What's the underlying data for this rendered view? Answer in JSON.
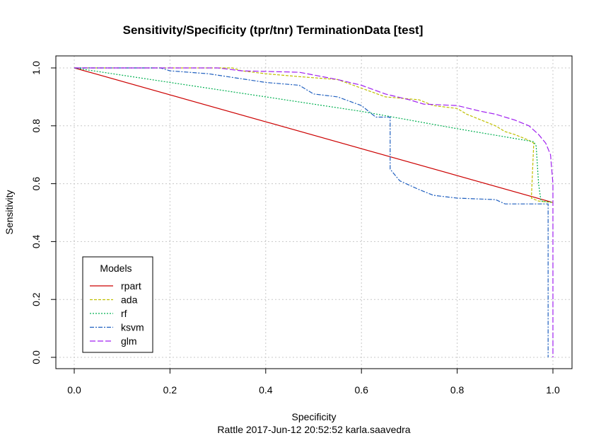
{
  "chart_data": {
    "type": "line",
    "title": "Sensitivity/Specificity (tpr/tnr) TerminationData [test]",
    "xlabel": "Specificity",
    "ylabel": "Sensitivity",
    "subtitle": "Rattle 2017-Jun-12 20:52:52 karla.saavedra",
    "xlim": [
      0,
      1
    ],
    "ylim": [
      0,
      1
    ],
    "x_ticks": [
      "0.0",
      "0.2",
      "0.4",
      "0.6",
      "0.8",
      "1.0"
    ],
    "y_ticks": [
      "0.0",
      "0.2",
      "0.4",
      "0.6",
      "0.8",
      "1.0"
    ],
    "grid": true,
    "legend": {
      "title": "Models",
      "position": "bottom-left"
    },
    "series": [
      {
        "name": "rpart",
        "color": "#cc0000",
        "dash": "solid",
        "points": [
          [
            0.0,
            1.0
          ],
          [
            1.0,
            0.535
          ]
        ]
      },
      {
        "name": "ada",
        "color": "#bfbf00",
        "dash": "4,2",
        "points": [
          [
            0.0,
            1.0
          ],
          [
            0.33,
            1.0
          ],
          [
            0.35,
            0.99
          ],
          [
            0.4,
            0.98
          ],
          [
            0.47,
            0.97
          ],
          [
            0.55,
            0.96
          ],
          [
            0.6,
            0.93
          ],
          [
            0.65,
            0.9
          ],
          [
            0.72,
            0.89
          ],
          [
            0.75,
            0.87
          ],
          [
            0.8,
            0.86
          ],
          [
            0.82,
            0.84
          ],
          [
            0.85,
            0.82
          ],
          [
            0.88,
            0.8
          ],
          [
            0.9,
            0.78
          ],
          [
            0.92,
            0.77
          ],
          [
            0.95,
            0.75
          ],
          [
            0.96,
            0.74
          ],
          [
            0.955,
            0.55
          ],
          [
            0.97,
            0.54
          ],
          [
            1.0,
            0.535
          ]
        ]
      },
      {
        "name": "rf",
        "color": "#00b050",
        "dash": "2,2",
        "points": [
          [
            0.0,
            1.0
          ],
          [
            0.2,
            0.95
          ],
          [
            0.4,
            0.9
          ],
          [
            0.6,
            0.85
          ],
          [
            0.8,
            0.79
          ],
          [
            0.96,
            0.745
          ],
          [
            0.965,
            0.73
          ],
          [
            0.97,
            0.6
          ],
          [
            0.975,
            0.54
          ],
          [
            1.0,
            0.535
          ]
        ]
      },
      {
        "name": "ksvm",
        "color": "#1f5fbf",
        "dash": "6,2,2,2",
        "points": [
          [
            0.0,
            1.0
          ],
          [
            0.18,
            1.0
          ],
          [
            0.2,
            0.99
          ],
          [
            0.28,
            0.98
          ],
          [
            0.32,
            0.97
          ],
          [
            0.36,
            0.96
          ],
          [
            0.4,
            0.95
          ],
          [
            0.47,
            0.94
          ],
          [
            0.5,
            0.91
          ],
          [
            0.55,
            0.9
          ],
          [
            0.6,
            0.87
          ],
          [
            0.63,
            0.83
          ],
          [
            0.66,
            0.83
          ],
          [
            0.66,
            0.65
          ],
          [
            0.68,
            0.61
          ],
          [
            0.72,
            0.58
          ],
          [
            0.75,
            0.56
          ],
          [
            0.8,
            0.55
          ],
          [
            0.88,
            0.545
          ],
          [
            0.9,
            0.53
          ],
          [
            0.99,
            0.53
          ],
          [
            0.99,
            0.0
          ]
        ]
      },
      {
        "name": "glm",
        "color": "#a020f0",
        "dash": "8,3",
        "points": [
          [
            0.0,
            1.0
          ],
          [
            0.3,
            1.0
          ],
          [
            0.35,
            0.99
          ],
          [
            0.47,
            0.985
          ],
          [
            0.55,
            0.96
          ],
          [
            0.6,
            0.94
          ],
          [
            0.65,
            0.91
          ],
          [
            0.7,
            0.89
          ],
          [
            0.73,
            0.875
          ],
          [
            0.8,
            0.87
          ],
          [
            0.85,
            0.85
          ],
          [
            0.88,
            0.84
          ],
          [
            0.92,
            0.82
          ],
          [
            0.95,
            0.8
          ],
          [
            0.97,
            0.77
          ],
          [
            0.985,
            0.74
          ],
          [
            0.995,
            0.7
          ],
          [
            1.0,
            0.6
          ],
          [
            1.0,
            0.0
          ]
        ]
      }
    ]
  }
}
